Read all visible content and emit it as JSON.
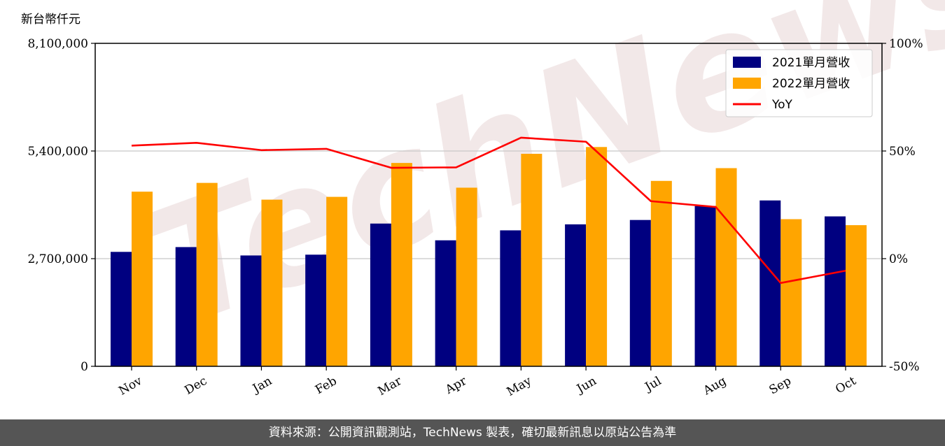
{
  "chart_data": {
    "type": "bar",
    "unit_label": "新台幣仟元",
    "categories": [
      "Nov",
      "Dec",
      "Jan",
      "Feb",
      "Mar",
      "Apr",
      "May",
      "Jun",
      "Jul",
      "Aug",
      "Sep",
      "Oct"
    ],
    "series": [
      {
        "name": "2021單月營收",
        "type": "bar",
        "color": "#000080",
        "values": [
          2870000,
          2990000,
          2780000,
          2800000,
          3580000,
          3160000,
          3410000,
          3560000,
          3670000,
          4020000,
          4160000,
          3760000
        ]
      },
      {
        "name": "2022單月營收",
        "type": "bar",
        "color": "#FFA500",
        "values": [
          4380000,
          4600000,
          4180000,
          4250000,
          5100000,
          4480000,
          5330000,
          5500000,
          4650000,
          4970000,
          3690000,
          3540000
        ]
      },
      {
        "name": "YoY",
        "type": "line",
        "axis": "right",
        "color": "#FF0000",
        "values": [
          52.5,
          53.8,
          50.4,
          51.0,
          42.2,
          42.4,
          56.2,
          54.3,
          26.7,
          24.0,
          -11.3,
          -5.6
        ]
      }
    ],
    "ylim": [
      0,
      8100000
    ],
    "y_ticks": [
      "0",
      "2,700,000",
      "5,400,000",
      "8,100,000"
    ],
    "y2lim": [
      -50,
      100
    ],
    "y2_ticks": [
      "-50%",
      "0%",
      "50%",
      "100%"
    ],
    "grid": true,
    "legend_position": "top-right"
  },
  "watermark": "TechNews",
  "footer": {
    "source": "資料來源：公開資訊觀測站，TechNews 製表，確切最新訊息以原站公告為準"
  }
}
